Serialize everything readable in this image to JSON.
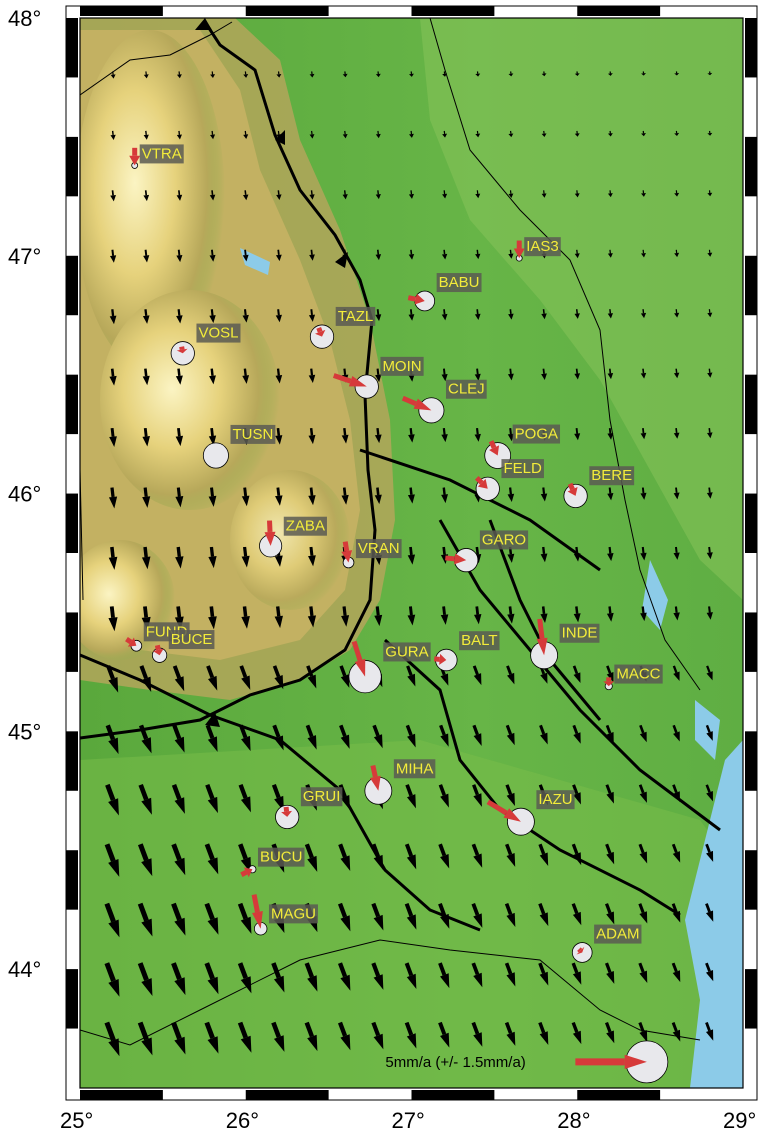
{
  "map": {
    "lon_range": [
      25,
      29
    ],
    "lat_range": [
      43.5,
      48
    ],
    "lat_ticks": [
      {
        "value": 48,
        "label": "48°"
      },
      {
        "value": 47,
        "label": "47°"
      },
      {
        "value": 46,
        "label": "46°"
      },
      {
        "value": 45,
        "label": "45°"
      },
      {
        "value": 44,
        "label": "44°"
      }
    ],
    "lon_ticks": [
      {
        "value": 25,
        "label": "25°"
      },
      {
        "value": 26,
        "label": "26°"
      },
      {
        "value": 27,
        "label": "27°"
      },
      {
        "value": 28,
        "label": "28°"
      },
      {
        "value": 29,
        "label": "29°"
      }
    ],
    "colors": {
      "lowland": "#4da63c",
      "plain": "#7cc24a",
      "hills": "#a6b85a",
      "mountains": "#cdb55e",
      "peaks": "#f7f0b0",
      "sea": "#8ccbe8",
      "arrow_observed": "#d63a3a",
      "label_text": "#f3ec3a",
      "ellipse_fill": "#e8e8ec"
    },
    "stations": [
      {
        "id": "VTRA",
        "lon": 25.33,
        "lat": 47.38,
        "ve": 0.0,
        "vn": -1.6,
        "err": 0.1
      },
      {
        "id": "IAS3",
        "lon": 27.65,
        "lat": 46.99,
        "ve": 0.0,
        "vn": -1.6,
        "err": 0.15
      },
      {
        "id": "BABU",
        "lon": 27.08,
        "lat": 46.81,
        "ve": 1.5,
        "vn": -0.3,
        "err": 0.55
      },
      {
        "id": "TAZL",
        "lon": 26.46,
        "lat": 46.66,
        "ve": 0.3,
        "vn": -0.8,
        "err": 0.65
      },
      {
        "id": "VOSL",
        "lon": 25.62,
        "lat": 46.59,
        "ve": 0.1,
        "vn": -0.6,
        "err": 0.65
      },
      {
        "id": "MOIN",
        "lon": 26.73,
        "lat": 46.45,
        "ve": 3.0,
        "vn": -1.0,
        "err": 0.65
      },
      {
        "id": "CLEJ",
        "lon": 27.12,
        "lat": 46.35,
        "ve": 2.6,
        "vn": -1.1,
        "err": 0.7
      },
      {
        "id": "POGA",
        "lon": 27.52,
        "lat": 46.16,
        "ve": 0.6,
        "vn": -1.3,
        "err": 0.72
      },
      {
        "id": "TUSN",
        "lon": 25.82,
        "lat": 46.16,
        "ve": 0.0,
        "vn": 0.0,
        "err": 0.7
      },
      {
        "id": "FELD",
        "lon": 27.46,
        "lat": 46.02,
        "ve": 1.0,
        "vn": -1.0,
        "err": 0.65
      },
      {
        "id": "BERE",
        "lon": 27.99,
        "lat": 45.99,
        "ve": 0.5,
        "vn": -1.1,
        "err": 0.65
      },
      {
        "id": "ZABA",
        "lon": 26.15,
        "lat": 45.78,
        "ve": 0.1,
        "vn": -2.3,
        "err": 0.62
      },
      {
        "id": "VRAN",
        "lon": 26.62,
        "lat": 45.71,
        "ve": 0.3,
        "vn": -1.9,
        "err": 0.3
      },
      {
        "id": "GARO",
        "lon": 27.33,
        "lat": 45.72,
        "ve": 1.9,
        "vn": -0.2,
        "err": 0.65
      },
      {
        "id": "FUND",
        "lon": 25.34,
        "lat": 45.36,
        "ve": 0.9,
        "vn": -0.6,
        "err": 0.3
      },
      {
        "id": "BUCE",
        "lon": 25.48,
        "lat": 45.32,
        "ve": 0.2,
        "vn": -0.9,
        "err": 0.4
      },
      {
        "id": "GURA",
        "lon": 26.72,
        "lat": 45.23,
        "ve": 1.0,
        "vn": -3.2,
        "err": 0.9
      },
      {
        "id": "BALT",
        "lon": 27.21,
        "lat": 45.3,
        "ve": 1.1,
        "vn": -0.1,
        "err": 0.6
      },
      {
        "id": "INDE",
        "lon": 27.8,
        "lat": 45.32,
        "ve": 0.4,
        "vn": -3.3,
        "err": 0.75
      },
      {
        "id": "MACC",
        "lon": 28.19,
        "lat": 45.19,
        "ve": 0.0,
        "vn": -0.8,
        "err": 0.2
      },
      {
        "id": "MIHA",
        "lon": 26.8,
        "lat": 44.75,
        "ve": 0.5,
        "vn": -2.3,
        "err": 0.75
      },
      {
        "id": "GRUI",
        "lon": 26.25,
        "lat": 44.64,
        "ve": 0.1,
        "vn": -0.9,
        "err": 0.65
      },
      {
        "id": "IAZU",
        "lon": 27.66,
        "lat": 44.62,
        "ve": 3.0,
        "vn": -1.8,
        "err": 0.75
      },
      {
        "id": "BUCU",
        "lon": 26.04,
        "lat": 44.42,
        "ve": 1.0,
        "vn": 0.5,
        "err": 0.2
      },
      {
        "id": "MAGU",
        "lon": 26.09,
        "lat": 44.17,
        "ve": 0.6,
        "vn": -3.1,
        "err": 0.35
      },
      {
        "id": "ADAM",
        "lon": 28.03,
        "lat": 44.07,
        "ve": 0.3,
        "vn": -0.3,
        "err": 0.55
      }
    ],
    "scale": {
      "label": "5mm/a (+/- 1.5mm/a)",
      "lon": 28.42,
      "lat": 43.61,
      "ve": 5.0,
      "vn": 0.0,
      "err": 1.5
    }
  }
}
